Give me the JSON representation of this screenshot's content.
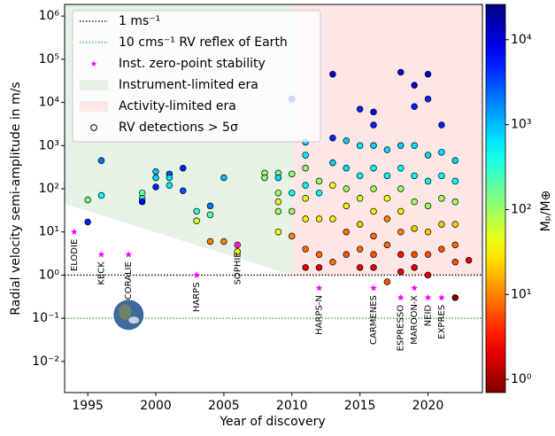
{
  "chart_data": {
    "type": "scatter",
    "xlabel": "Year of discovery",
    "ylabel": "Radial velocity semi-amplitude in m/s",
    "xlim": [
      1993.3,
      2024
    ],
    "ylim": [
      0.0019,
      1860000
    ],
    "yscale": "log",
    "xticks": [
      1995,
      2000,
      2005,
      2010,
      2015,
      2020
    ],
    "yticks": [
      {
        "value": 0.01,
        "label": "10⁻²"
      },
      {
        "value": 0.1,
        "label": "10⁻¹"
      },
      {
        "value": 1,
        "label": "10⁰"
      },
      {
        "value": 10,
        "label": "10¹"
      },
      {
        "value": 100,
        "label": "10²"
      },
      {
        "value": 1000,
        "label": "10³"
      },
      {
        "value": 10000,
        "label": "10⁴"
      },
      {
        "value": 100000,
        "label": "10⁵"
      },
      {
        "value": 1000000,
        "label": "10⁶"
      }
    ],
    "colorbar": {
      "label": "Mₚ/M⊕",
      "lim": [
        0.7,
        26000
      ],
      "scale": "log",
      "cmap": "jet_r",
      "ticks": [
        {
          "value": 1,
          "label": "10⁰"
        },
        {
          "value": 10,
          "label": "10¹"
        },
        {
          "value": 100,
          "label": "10²"
        },
        {
          "value": 1000,
          "label": "10³"
        },
        {
          "value": 10000,
          "label": "10⁴"
        }
      ]
    },
    "hlines": [
      {
        "name": "1 ms⁻¹",
        "y": 1,
        "color": "#000000"
      },
      {
        "name": "10 cms⁻¹ RV reflex of Earth",
        "y": 0.1,
        "color": "#2ca02c"
      }
    ],
    "instruments": {
      "name": "Inst. zero-point stability",
      "color": "#ff00ff",
      "labels": [
        "ELODIE",
        "KECK",
        "CORALIE",
        "HARPS",
        "SOPHIE",
        "HARPS-N",
        "CARMENES",
        "ESPRESSO",
        "MAROON-X",
        "NEID",
        "EXPRES"
      ],
      "x": [
        1994,
        1996,
        1998,
        2003,
        2006,
        2012,
        2016,
        2018,
        2019,
        2020,
        2021
      ],
      "y": [
        10,
        3,
        3,
        1,
        5,
        0.5,
        0.5,
        0.3,
        0.5,
        0.3,
        0.3
      ]
    },
    "regions": [
      {
        "name": "Instrument-limited era",
        "color": "#e6f2e6",
        "x": [
          1993.3,
          2010,
          2010,
          1993.3
        ],
        "y": [
          45,
          1,
          1860000,
          1860000
        ]
      },
      {
        "name": "Activity-limited era",
        "color": "#fde6e6",
        "x": [
          2010,
          2024,
          2024,
          2010
        ],
        "y": [
          1,
          1,
          1860000,
          1860000
        ]
      }
    ],
    "series": [
      {
        "name": "RV detections > 5σ",
        "x": [
          1995,
          1995,
          1996,
          1996,
          1999,
          1999,
          1999,
          2000,
          2000,
          2000,
          2001,
          2001,
          2001,
          2002,
          2002,
          2003,
          2003,
          2004,
          2004,
          2004,
          2005,
          2005,
          2006,
          2006,
          2008,
          2008,
          2009,
          2009,
          2009,
          2009,
          2009,
          2009,
          2010,
          2010,
          2010,
          2010,
          2010,
          2011,
          2011,
          2011,
          2011,
          2011,
          2011,
          2011,
          2011,
          2012,
          2012,
          2012,
          2012,
          2012,
          2013,
          2013,
          2013,
          2013,
          2013,
          2013,
          2014,
          2014,
          2014,
          2014,
          2014,
          2014,
          2015,
          2015,
          2015,
          2015,
          2015,
          2015,
          2015,
          2016,
          2016,
          2016,
          2016,
          2016,
          2016,
          2016,
          2016,
          2016,
          2017,
          2017,
          2017,
          2017,
          2017,
          2017,
          2018,
          2018,
          2018,
          2018,
          2018,
          2018,
          2018,
          2018,
          2019,
          2019,
          2019,
          2019,
          2019,
          2019,
          2019,
          2019,
          2020,
          2020,
          2020,
          2020,
          2020,
          2020,
          2020,
          2020,
          2021,
          2021,
          2021,
          2021,
          2021,
          2021,
          2022,
          2022,
          2022,
          2022,
          2022,
          2022,
          2022,
          2023
        ],
        "values": [
          55,
          17,
          450,
          70,
          80,
          60,
          50,
          250,
          110,
          180,
          220,
          180,
          120,
          300,
          90,
          30,
          18,
          40,
          6,
          25,
          6,
          180,
          5,
          3.5,
          230,
          180,
          230,
          80,
          30,
          10,
          180,
          50,
          220,
          80,
          30,
          8,
          12000,
          1200,
          600,
          300,
          120,
          60,
          20,
          4,
          1.5,
          150,
          80,
          20,
          3,
          1.5,
          45000,
          1500,
          400,
          120,
          20,
          2,
          1300,
          300,
          100,
          40,
          10,
          3,
          7000,
          1000,
          200,
          60,
          15,
          4,
          1.5,
          6000,
          3000,
          1000,
          300,
          100,
          30,
          8,
          3,
          1.5,
          800,
          200,
          60,
          20,
          5,
          0.7,
          50000,
          1000,
          300,
          100,
          30,
          10,
          3,
          1.2,
          25000,
          8000,
          1000,
          200,
          50,
          12,
          3,
          1.5,
          45000,
          12000,
          600,
          150,
          40,
          10,
          3,
          1,
          3000,
          700,
          200,
          60,
          15,
          4,
          450,
          150,
          50,
          15,
          5,
          2,
          0.3,
          2.2
        ],
        "c": [
          150,
          5000,
          2000,
          500,
          150,
          500,
          8000,
          1000,
          5000,
          800,
          3000,
          700,
          600,
          5000,
          3000,
          300,
          60,
          2000,
          10,
          200,
          10,
          1000,
          10,
          30,
          100,
          120,
          150,
          100,
          100,
          40,
          700,
          50,
          120,
          500,
          100,
          10,
          3000,
          800,
          600,
          120,
          500,
          50,
          30,
          8,
          2,
          100,
          500,
          30,
          8,
          2,
          10000,
          5000,
          800,
          40,
          30,
          8,
          800,
          700,
          100,
          30,
          8,
          6,
          5000,
          600,
          500,
          60,
          20,
          8,
          2,
          8000,
          5000,
          800,
          500,
          100,
          30,
          8,
          6,
          2,
          700,
          500,
          40,
          10,
          8,
          6,
          10000,
          800,
          500,
          100,
          30,
          10,
          3,
          2,
          10000,
          5000,
          700,
          500,
          100,
          20,
          6,
          2,
          10000,
          5000,
          700,
          500,
          100,
          20,
          6,
          2,
          5000,
          700,
          500,
          100,
          20,
          6,
          800,
          500,
          100,
          20,
          8,
          6,
          0.8,
          2
        ]
      }
    ]
  }
}
